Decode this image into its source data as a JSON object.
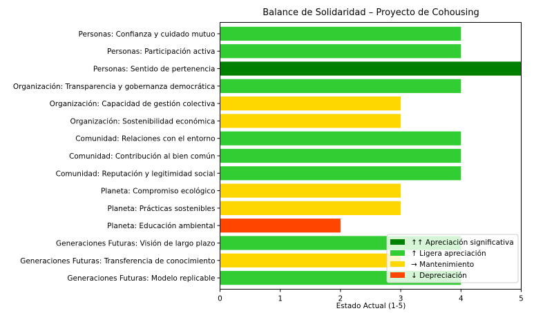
{
  "chart_data": {
    "type": "bar",
    "orientation": "horizontal",
    "title": "Balance de Solidaridad – Proyecto de Cohousing",
    "xlabel": "Estado Actual (1-5)",
    "ylabel": "",
    "xlim": [
      0,
      5
    ],
    "xticks": [
      "0",
      "1",
      "2",
      "3",
      "4",
      "5"
    ],
    "grid": false,
    "legend_position": "lower-right",
    "categories": [
      "Personas: Confianza y cuidado mutuo",
      "Personas: Participación activa",
      "Personas: Sentido de pertenencia",
      "Organización: Transparencia y gobernanza democrática",
      "Organización: Capacidad de gestión colectiva",
      "Organización: Sostenibilidad económica",
      "Comunidad: Relaciones con el entorno",
      "Comunidad: Contribución al bien común",
      "Comunidad: Reputación y legitimidad social",
      "Planeta: Compromiso ecológico",
      "Planeta: Prácticas sostenibles",
      "Planeta: Educación ambiental",
      "Generaciones Futuras: Visión de largo plazo",
      "Generaciones Futuras: Transferencia de conocimiento",
      "Generaciones Futuras: Modelo replicable"
    ],
    "values": [
      4,
      4,
      5,
      4,
      3,
      3,
      4,
      4,
      4,
      3,
      3,
      2,
      4,
      3,
      4
    ],
    "statuses": [
      "Ligera apreciación",
      "Ligera apreciación",
      "Apreciación significativa",
      "Ligera apreciación",
      "Mantenimiento",
      "Mantenimiento",
      "Ligera apreciación",
      "Ligera apreciación",
      "Ligera apreciación",
      "Mantenimiento",
      "Mantenimiento",
      "Depreciación",
      "Ligera apreciación",
      "Mantenimiento",
      "Ligera apreciación"
    ],
    "legend": [
      {
        "label": "↑↑ Apreciación significativa",
        "color": "#008000"
      },
      {
        "label": "↑ Ligera apreciación",
        "color": "#32cd32"
      },
      {
        "label": "→ Mantenimiento",
        "color": "#ffd700"
      },
      {
        "label": "↓ Depreciación",
        "color": "#ff4500"
      }
    ],
    "status_colors": {
      "Apreciación significativa": "#008000",
      "Ligera apreciación": "#32cd32",
      "Mantenimiento": "#ffd700",
      "Depreciación": "#ff4500"
    }
  }
}
